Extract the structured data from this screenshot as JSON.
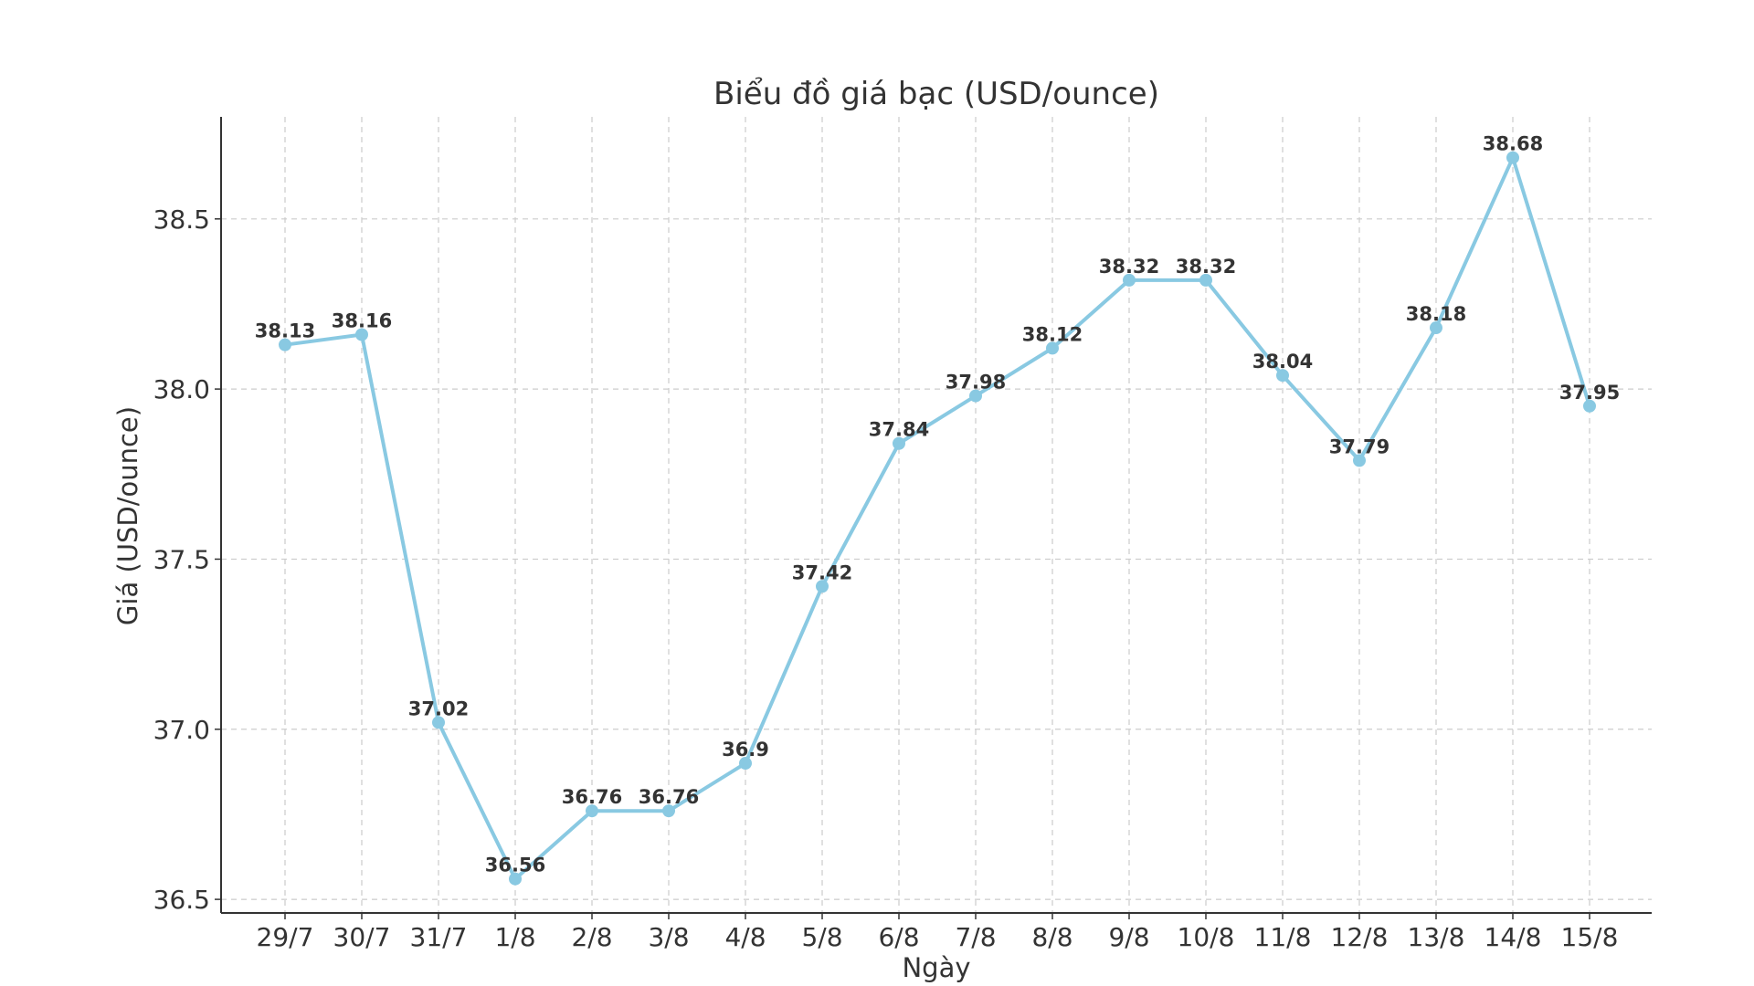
{
  "chart_data": {
    "type": "line",
    "title": "Biểu đồ giá bạc (USD/ounce)",
    "xlabel": "Ngày",
    "ylabel": "Giá (USD/ounce)",
    "categories": [
      "29/7",
      "30/7",
      "31/7",
      "1/8",
      "2/8",
      "3/8",
      "4/8",
      "5/8",
      "6/8",
      "7/8",
      "8/8",
      "9/8",
      "10/8",
      "11/8",
      "12/8",
      "13/8",
      "14/8",
      "15/8"
    ],
    "series": [
      {
        "values": [
          38.13,
          38.16,
          37.02,
          36.56,
          36.76,
          36.76,
          36.9,
          37.42,
          37.84,
          37.98,
          38.12,
          38.32,
          38.32,
          38.04,
          37.79,
          38.18,
          38.68,
          37.95
        ],
        "labels": [
          "38.13",
          "38.16",
          "37.02",
          "36.56",
          "36.76",
          "36.76",
          "36.9",
          "37.42",
          "37.84",
          "37.98",
          "38.12",
          "38.32",
          "38.32",
          "38.04",
          "37.79",
          "38.18",
          "38.68",
          "37.95"
        ],
        "color": "#89c9e2"
      }
    ],
    "yticks": [
      "36.5",
      "37.0",
      "37.5",
      "38.0",
      "38.5"
    ],
    "ylim": [
      36.46,
      38.8
    ],
    "grid": true,
    "legend": "none"
  }
}
